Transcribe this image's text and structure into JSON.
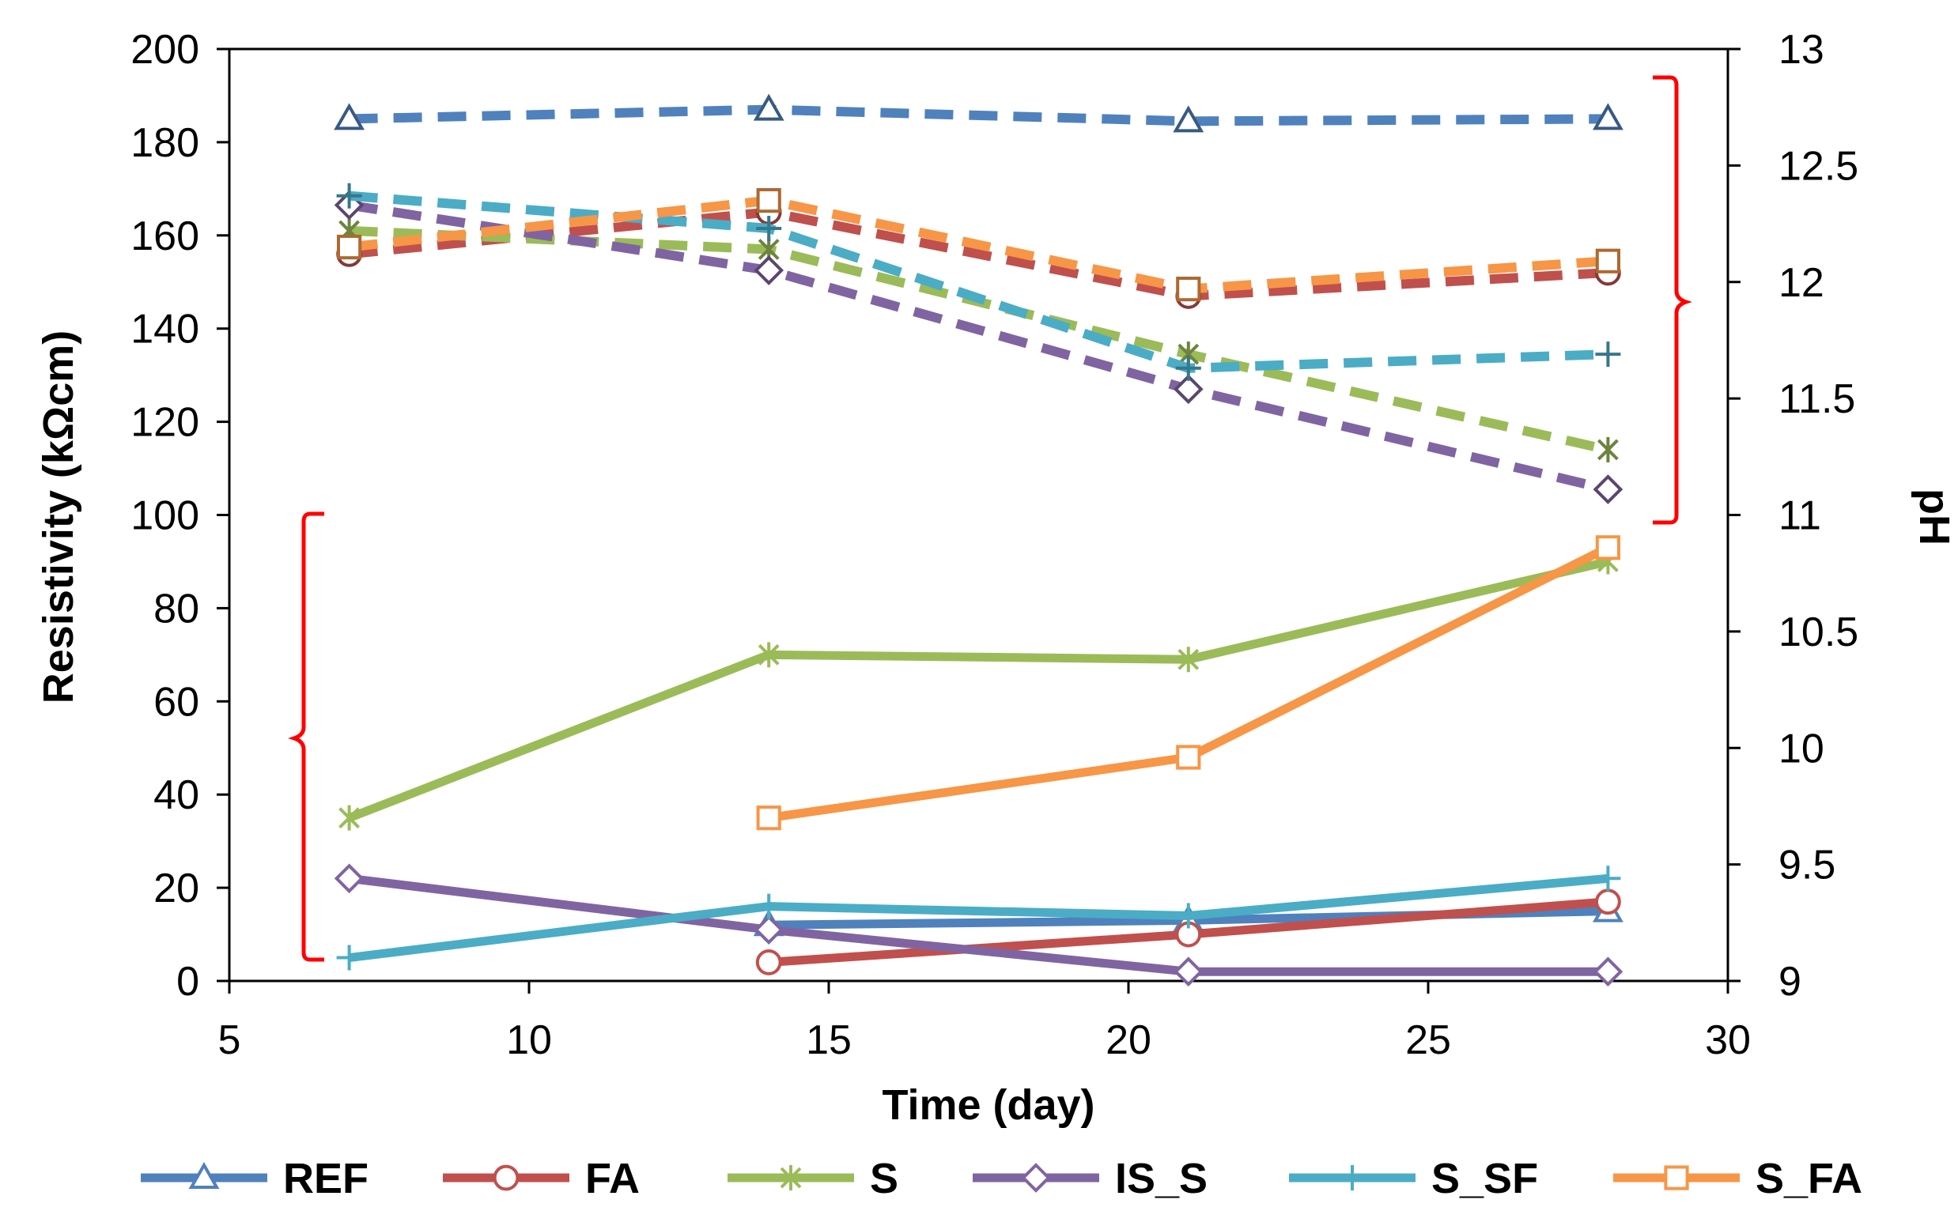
{
  "chart_data": {
    "type": "line",
    "title": "",
    "xlabel": "Time (day)",
    "ylabel_left": "Resistivity (kΩcm)",
    "ylabel_right": "pH",
    "xlim": [
      5,
      30
    ],
    "xticks": [
      "5",
      "10",
      "15",
      "20",
      "25",
      "30"
    ],
    "ylim_left": [
      0,
      200
    ],
    "yticks_left": [
      "0",
      "20",
      "40",
      "60",
      "80",
      "100",
      "120",
      "140",
      "160",
      "180",
      "200"
    ],
    "ylim_right": [
      9,
      13
    ],
    "yticks_right": [
      "9",
      "9.5",
      "10",
      "10.5",
      "11",
      "11.5",
      "12",
      "12.5",
      "13"
    ],
    "legend_position": "bottom",
    "series": [
      {
        "name": "REF",
        "color": "#4f81bd",
        "marker": "triangle",
        "resistivity": {
          "x": [
            14,
            21,
            28
          ],
          "y": [
            12,
            13,
            15
          ]
        },
        "ph": {
          "x": [
            7,
            14,
            21,
            28
          ],
          "y": [
            12.7,
            12.74,
            12.69,
            12.7
          ]
        }
      },
      {
        "name": "FA",
        "color": "#c0504d",
        "marker": "circle",
        "resistivity": {
          "x": [
            14,
            21,
            28
          ],
          "y": [
            4,
            10,
            17
          ]
        },
        "ph": {
          "x": [
            7,
            14,
            21,
            28
          ],
          "y": [
            12.12,
            12.3,
            11.94,
            12.04
          ]
        }
      },
      {
        "name": "S",
        "color": "#9bbb59",
        "marker": "asterisk",
        "resistivity": {
          "x": [
            7,
            14,
            21,
            28
          ],
          "y": [
            35,
            70,
            69,
            90
          ]
        },
        "ph": {
          "x": [
            7,
            14,
            21,
            28
          ],
          "y": [
            12.22,
            12.14,
            11.69,
            11.28
          ]
        }
      },
      {
        "name": "IS_S",
        "color": "#8064a2",
        "marker": "diamond",
        "resistivity": {
          "x": [
            7,
            14,
            21,
            28
          ],
          "y": [
            22,
            11,
            2,
            2
          ]
        },
        "ph": {
          "x": [
            7,
            14,
            21,
            28
          ],
          "y": [
            12.33,
            12.05,
            11.54,
            11.11
          ]
        }
      },
      {
        "name": "S_SF",
        "color": "#4bacc6",
        "marker": "plus",
        "resistivity": {
          "x": [
            7,
            14,
            21,
            28
          ],
          "y": [
            5,
            16,
            14,
            22
          ]
        },
        "ph": {
          "x": [
            7,
            14,
            21,
            28
          ],
          "y": [
            12.37,
            12.23,
            11.63,
            11.69
          ]
        }
      },
      {
        "name": "S_FA",
        "color": "#f79646",
        "marker": "square",
        "resistivity": {
          "x": [
            14,
            21,
            28
          ],
          "y": [
            35,
            48,
            93
          ]
        },
        "ph": {
          "x": [
            7,
            14,
            21,
            28
          ],
          "y": [
            12.15,
            12.35,
            11.97,
            12.09
          ]
        }
      }
    ]
  }
}
